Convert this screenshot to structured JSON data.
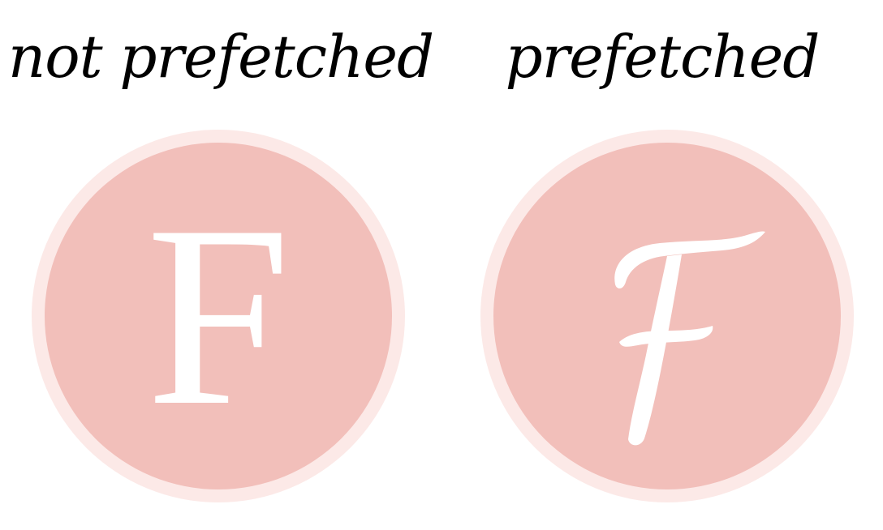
{
  "panels": [
    {
      "caption": "not prefetched",
      "glyph": "F",
      "glyph_style": "upright"
    },
    {
      "caption": "prefetched",
      "glyph": "F",
      "glyph_style": "script"
    }
  ],
  "colors": {
    "ring": "#fce9e7",
    "disc": "#f2bfba",
    "glyph": "#ffffff",
    "caption": "#000000"
  }
}
